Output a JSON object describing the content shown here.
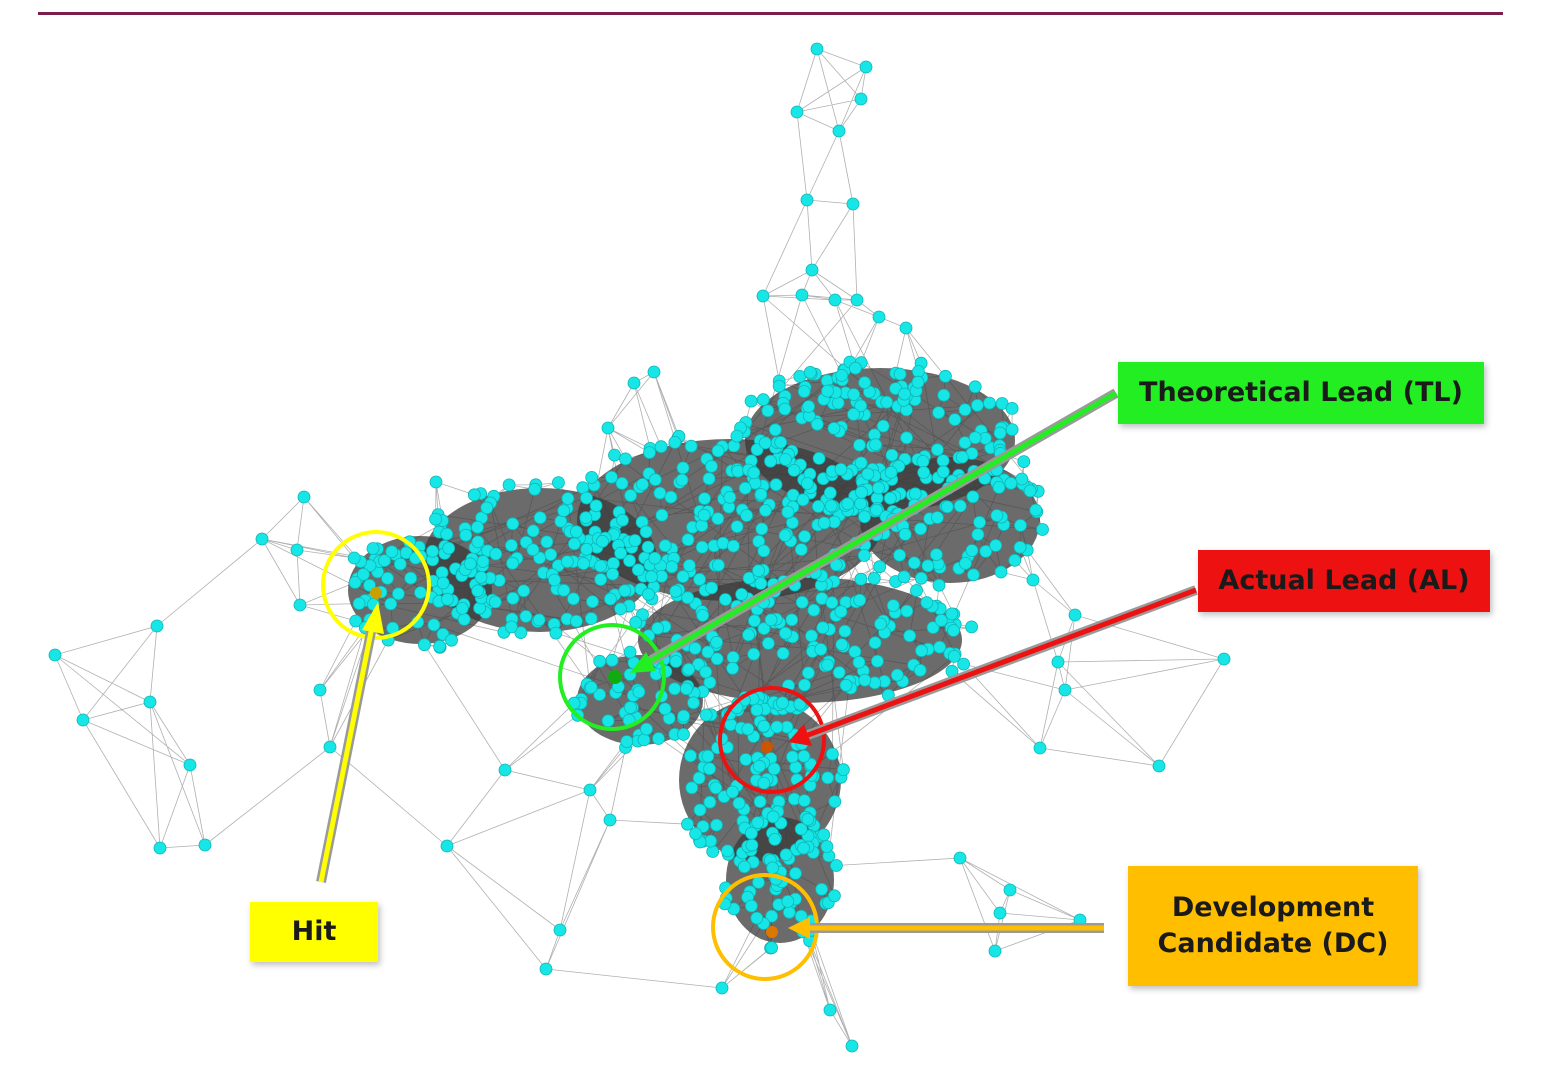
{
  "colors": {
    "top_rule": "#7b1f4a",
    "node": "#16e6e6",
    "node_stroke": "#0fb5b5",
    "edge": "#505050",
    "hit": "#ffff00",
    "theoretical_lead": "#22ee22",
    "actual_lead": "#ee1111",
    "development_candidate": "#ffbf00",
    "marker_hit": "#c8a000",
    "marker_tl": "#11aa11",
    "marker_al": "#cc5500",
    "marker_dc": "#dd7700"
  },
  "labels": {
    "theoretical_lead": "Theoretical Lead (TL)",
    "actual_lead": "Actual Lead (AL)",
    "development_candidate_line1": "Development",
    "development_candidate_line2": "Candidate (DC)",
    "hit": "Hit"
  },
  "icons": {
    "node": "cyan-circle-node-icon",
    "pointer": "arrow-icon"
  }
}
